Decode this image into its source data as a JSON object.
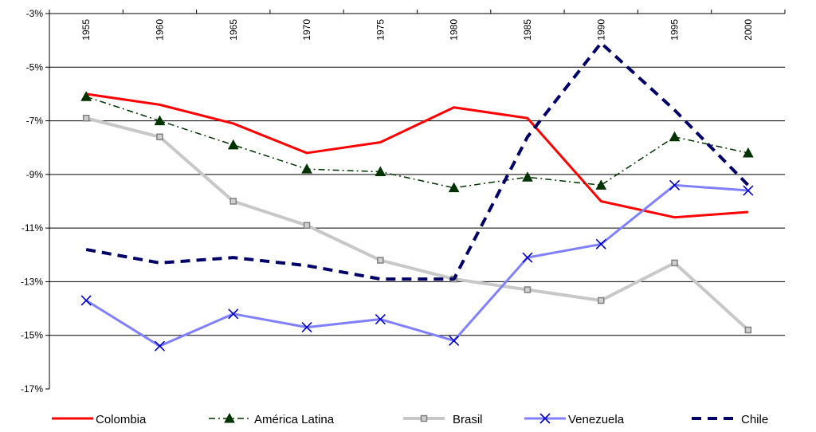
{
  "chart_data": {
    "type": "line",
    "x": [
      "1955",
      "1960",
      "1965",
      "1970",
      "1975",
      "1980",
      "1985",
      "1990",
      "1995",
      "2000"
    ],
    "y_ticks": [
      "-3%",
      "-5%",
      "-7%",
      "-9%",
      "-11%",
      "-13%",
      "-15%",
      "-17%"
    ],
    "ylim": [
      -17,
      -3
    ],
    "grid": "horizontal major lines",
    "legend": "bottom",
    "series": [
      {
        "name": "Colombia",
        "color": "#ff0000",
        "style": "solid",
        "marker": "none",
        "values": [
          -6.0,
          -6.4,
          -7.1,
          -8.2,
          -7.8,
          -6.5,
          -6.9,
          -10.0,
          -10.6,
          -10.4
        ]
      },
      {
        "name": "América Latina",
        "color": "#003300",
        "style": "dashdot",
        "marker": "triangle",
        "values": [
          -6.1,
          -7.0,
          -7.9,
          -8.8,
          -8.9,
          -9.5,
          -9.1,
          -9.4,
          -7.6,
          -8.2
        ]
      },
      {
        "name": "Brasil",
        "color": "#c8c8c8",
        "style": "solid",
        "marker": "square",
        "values": [
          -6.9,
          -7.6,
          -10.0,
          -10.9,
          -12.2,
          -12.9,
          -13.3,
          -13.7,
          -12.3,
          -14.8
        ]
      },
      {
        "name": "Venezuela",
        "color": "#8080ff",
        "style": "solid",
        "marker": "x",
        "values": [
          -13.7,
          -15.4,
          -14.2,
          -14.7,
          -14.4,
          -15.2,
          -12.1,
          -11.6,
          -9.4,
          -9.6
        ]
      },
      {
        "name": "Chile",
        "color": "#000066",
        "style": "dashed",
        "marker": "none",
        "values": [
          -11.8,
          -12.3,
          -12.1,
          -12.4,
          -12.9,
          -12.9,
          -7.6,
          -4.1,
          -6.6,
          -9.4
        ]
      }
    ]
  }
}
